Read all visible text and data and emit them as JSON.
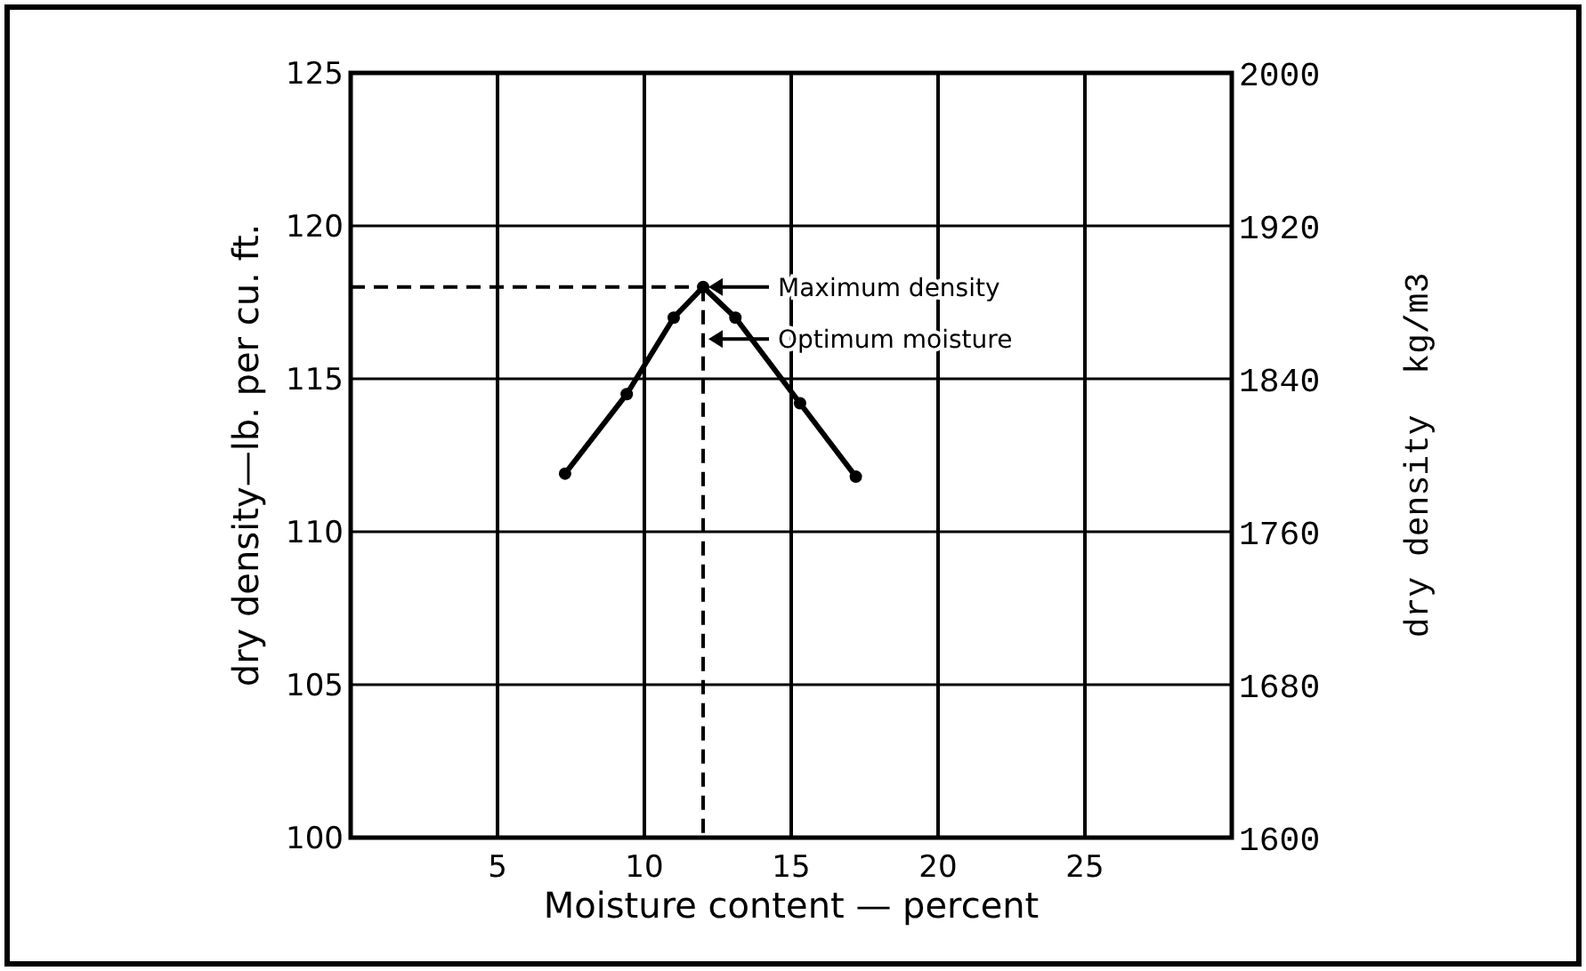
{
  "chart_data": {
    "type": "line",
    "xlabel": "Moisture content — percent",
    "ylabel": "dry density—lb. per cu. ft.",
    "y2label": "dry density  kg/m3",
    "x": [
      7.3,
      9.4,
      11,
      12,
      13.1,
      15.3,
      17.2
    ],
    "series": [
      {
        "color": "#000000",
        "values": [
          111.9,
          114.5,
          117,
          118,
          117,
          114.2,
          111.8
        ]
      }
    ],
    "xlim": [
      0,
      30
    ],
    "xticks": [
      5,
      10,
      15,
      20,
      25
    ],
    "ylim": [
      100,
      125
    ],
    "yticks": [
      100,
      105,
      110,
      115,
      120,
      125
    ],
    "y2lim": [
      1600,
      2000
    ],
    "y2ticks": [
      1600,
      1680,
      1760,
      1840,
      1920,
      2000
    ],
    "grid": true,
    "marker": "circle",
    "line_style": "solid",
    "ref_lines": [
      {
        "axis": "y",
        "value": 118,
        "line_style": "dashed",
        "color": "#000000"
      },
      {
        "axis": "x",
        "value": 12,
        "line_style": "dashed",
        "color": "#000000"
      }
    ],
    "annotations": [
      {
        "text": "Maximum density",
        "x": 12,
        "y": 118
      },
      {
        "text": "Optimum moisture",
        "x": 12,
        "y": 116.3
      }
    ]
  }
}
